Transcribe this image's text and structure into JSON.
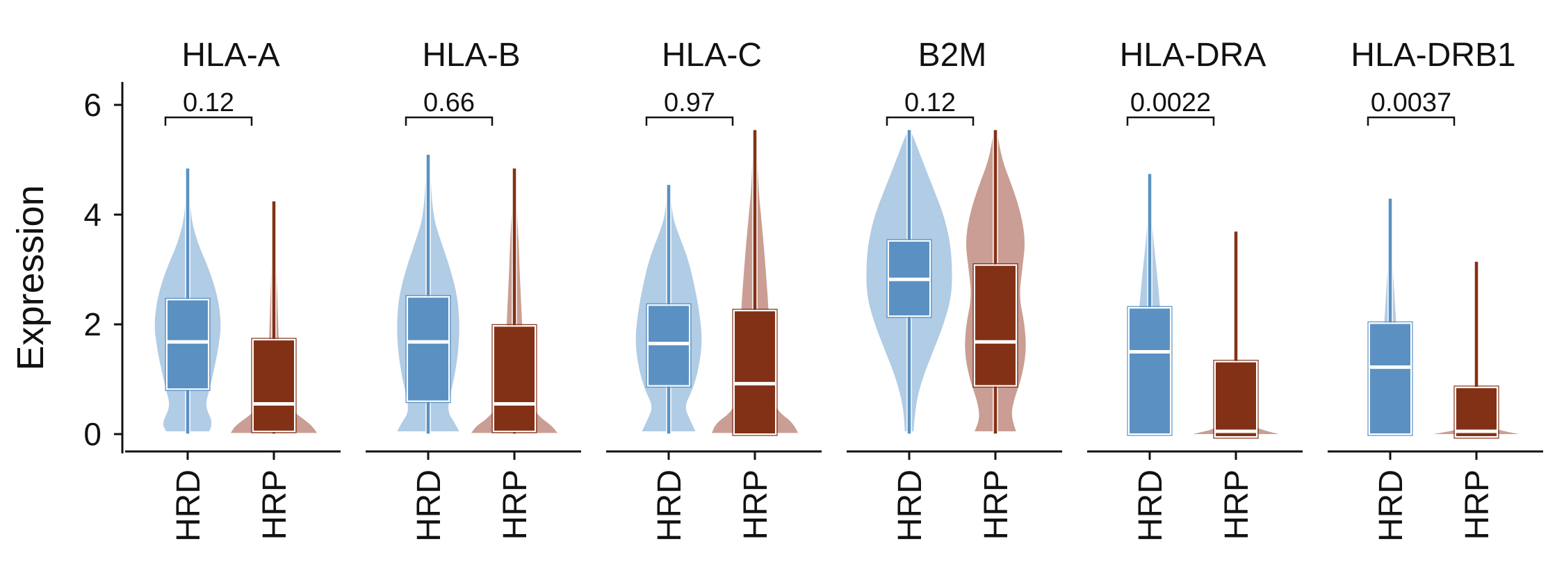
{
  "chart_data": {
    "type": "violin",
    "ylabel": "Expression",
    "ylim": [
      -0.3,
      6.4
    ],
    "yticks": [
      0,
      2,
      4,
      6
    ],
    "groups": [
      "HRD",
      "HRP"
    ],
    "colors": {
      "HRD_violin": "#a9c6e2",
      "HRD_box": "#5a91c2",
      "HRP_violin": "#c49488",
      "HRP_box": "#833116",
      "median": "#ffffff"
    },
    "panels": [
      {
        "gene": "HLA-A",
        "pvalue": "0.12",
        "HRD": {
          "q1": 0.82,
          "median": 1.68,
          "q3": 2.45,
          "max": 4.85,
          "density": [
            [
              0.05,
              0.5
            ],
            [
              0.2,
              0.6
            ],
            [
              0.5,
              0.4
            ],
            [
              0.8,
              0.5
            ],
            [
              1.2,
              0.62
            ],
            [
              1.6,
              0.72
            ],
            [
              2.0,
              0.78
            ],
            [
              2.5,
              0.7
            ],
            [
              3.0,
              0.5
            ],
            [
              3.5,
              0.22
            ],
            [
              4.0,
              0.06
            ],
            [
              4.85,
              0.01
            ]
          ]
        },
        "HRP": {
          "q1": 0.05,
          "median": 0.55,
          "q3": 1.72,
          "max": 4.25,
          "density": [
            [
              0.02,
              1.0
            ],
            [
              0.15,
              0.9
            ],
            [
              0.35,
              0.55
            ],
            [
              0.6,
              0.18
            ],
            [
              1.0,
              0.14
            ],
            [
              1.5,
              0.12
            ],
            [
              2.0,
              0.1
            ],
            [
              2.5,
              0.08
            ],
            [
              3.0,
              0.06
            ],
            [
              3.5,
              0.04
            ],
            [
              4.25,
              0.01
            ]
          ]
        }
      },
      {
        "gene": "HLA-B",
        "pvalue": "0.66",
        "HRD": {
          "q1": 0.6,
          "median": 1.68,
          "q3": 2.5,
          "max": 5.1,
          "density": [
            [
              0.05,
              0.72
            ],
            [
              0.2,
              0.62
            ],
            [
              0.4,
              0.45
            ],
            [
              0.7,
              0.5
            ],
            [
              1.0,
              0.6
            ],
            [
              1.5,
              0.7
            ],
            [
              2.0,
              0.73
            ],
            [
              2.5,
              0.68
            ],
            [
              3.0,
              0.52
            ],
            [
              3.5,
              0.3
            ],
            [
              4.0,
              0.1
            ],
            [
              5.1,
              0.01
            ]
          ]
        },
        "HRP": {
          "q1": 0.05,
          "median": 0.55,
          "q3": 1.97,
          "max": 4.85,
          "density": [
            [
              0.02,
              1.0
            ],
            [
              0.15,
              0.88
            ],
            [
              0.3,
              0.6
            ],
            [
              0.6,
              0.3
            ],
            [
              1.0,
              0.22
            ],
            [
              1.5,
              0.2
            ],
            [
              2.0,
              0.18
            ],
            [
              2.5,
              0.15
            ],
            [
              3.0,
              0.12
            ],
            [
              3.5,
              0.1
            ],
            [
              4.0,
              0.06
            ],
            [
              4.85,
              0.01
            ]
          ]
        }
      },
      {
        "gene": "HLA-C",
        "pvalue": "0.97",
        "HRD": {
          "q1": 0.88,
          "median": 1.65,
          "q3": 2.35,
          "max": 4.55,
          "density": [
            [
              0.05,
              0.62
            ],
            [
              0.25,
              0.5
            ],
            [
              0.5,
              0.36
            ],
            [
              0.8,
              0.55
            ],
            [
              1.2,
              0.7
            ],
            [
              1.7,
              0.78
            ],
            [
              2.2,
              0.72
            ],
            [
              2.7,
              0.6
            ],
            [
              3.2,
              0.45
            ],
            [
              3.7,
              0.2
            ],
            [
              4.0,
              0.08
            ],
            [
              4.55,
              0.01
            ]
          ]
        },
        "HRP": {
          "q1": 0.0,
          "median": 0.92,
          "q3": 2.25,
          "max": 5.55,
          "density": [
            [
              0.02,
              1.0
            ],
            [
              0.2,
              0.9
            ],
            [
              0.4,
              0.55
            ],
            [
              0.7,
              0.35
            ],
            [
              1.0,
              0.3
            ],
            [
              1.5,
              0.32
            ],
            [
              2.0,
              0.33
            ],
            [
              2.5,
              0.3
            ],
            [
              3.0,
              0.25
            ],
            [
              3.5,
              0.2
            ],
            [
              4.0,
              0.14
            ],
            [
              4.5,
              0.08
            ],
            [
              5.55,
              0.01
            ]
          ]
        }
      },
      {
        "gene": "B2M",
        "pvalue": "0.12",
        "HRD": {
          "q1": 2.15,
          "median": 2.82,
          "q3": 3.52,
          "max": 5.55,
          "density": [
            [
              0.05,
              0.1
            ],
            [
              0.5,
              0.14
            ],
            [
              1.0,
              0.3
            ],
            [
              1.5,
              0.55
            ],
            [
              2.0,
              0.8
            ],
            [
              2.5,
              0.98
            ],
            [
              3.0,
              1.0
            ],
            [
              3.5,
              0.95
            ],
            [
              4.0,
              0.8
            ],
            [
              4.5,
              0.55
            ],
            [
              5.0,
              0.3
            ],
            [
              5.55,
              0.01
            ]
          ]
        },
        "HRP": {
          "q1": 0.88,
          "median": 1.68,
          "q3": 3.08,
          "max": 5.55,
          "density": [
            [
              0.05,
              0.48
            ],
            [
              0.3,
              0.36
            ],
            [
              0.6,
              0.42
            ],
            [
              1.0,
              0.6
            ],
            [
              1.5,
              0.72
            ],
            [
              2.0,
              0.68
            ],
            [
              2.5,
              0.55
            ],
            [
              3.0,
              0.62
            ],
            [
              3.5,
              0.7
            ],
            [
              4.0,
              0.6
            ],
            [
              4.5,
              0.4
            ],
            [
              5.0,
              0.15
            ],
            [
              5.55,
              0.01
            ]
          ]
        }
      },
      {
        "gene": "HLA-DRA",
        "pvalue": "0.0022",
        "HRD": {
          "q1": 0.0,
          "median": 1.5,
          "q3": 2.3,
          "max": 4.75,
          "density": [
            [
              0.02,
              0.45
            ],
            [
              0.3,
              0.35
            ],
            [
              0.6,
              0.3
            ],
            [
              1.0,
              0.3
            ],
            [
              1.5,
              0.3
            ],
            [
              2.0,
              0.27
            ],
            [
              2.5,
              0.22
            ],
            [
              3.0,
              0.16
            ],
            [
              3.5,
              0.09
            ],
            [
              4.0,
              0.04
            ],
            [
              4.75,
              0.01
            ]
          ]
        },
        "HRP": {
          "q1": -0.05,
          "median": 0.05,
          "q3": 1.32,
          "max": 3.7,
          "density": [
            [
              0.0,
              1.0
            ],
            [
              0.1,
              0.45
            ],
            [
              0.3,
              0.1
            ],
            [
              0.8,
              0.06
            ],
            [
              1.5,
              0.06
            ],
            [
              2.0,
              0.05
            ],
            [
              2.5,
              0.04
            ],
            [
              3.0,
              0.03
            ],
            [
              3.7,
              0.01
            ]
          ]
        }
      },
      {
        "gene": "HLA-DRB1",
        "pvalue": "0.0037",
        "HRD": {
          "q1": 0.0,
          "median": 1.22,
          "q3": 2.02,
          "max": 4.3,
          "density": [
            [
              0.02,
              0.35
            ],
            [
              0.3,
              0.25
            ],
            [
              0.6,
              0.22
            ],
            [
              1.0,
              0.2
            ],
            [
              1.5,
              0.18
            ],
            [
              2.0,
              0.14
            ],
            [
              2.5,
              0.1
            ],
            [
              3.0,
              0.06
            ],
            [
              3.5,
              0.03
            ],
            [
              4.3,
              0.01
            ]
          ]
        },
        "HRP": {
          "q1": -0.05,
          "median": 0.05,
          "q3": 0.85,
          "max": 3.15,
          "density": [
            [
              0.0,
              1.0
            ],
            [
              0.08,
              0.4
            ],
            [
              0.25,
              0.08
            ],
            [
              0.8,
              0.04
            ],
            [
              1.5,
              0.03
            ],
            [
              2.0,
              0.02
            ],
            [
              2.5,
              0.015
            ],
            [
              3.15,
              0.01
            ]
          ]
        }
      }
    ]
  }
}
